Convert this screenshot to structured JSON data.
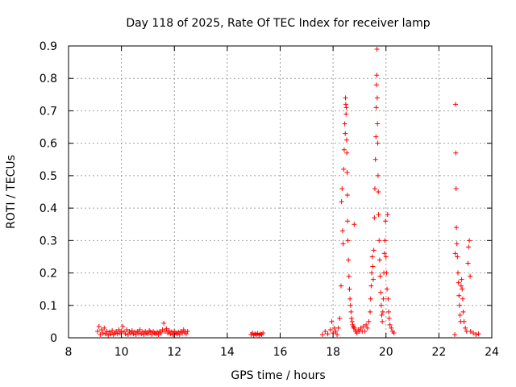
{
  "chart_data": {
    "type": "scatter",
    "title": "Day 118 of 2025, Rate Of TEC Index for receiver lamp",
    "xlabel": "GPS time / hours",
    "ylabel": "ROTI / TECUs",
    "xlim": [
      8,
      24
    ],
    "ylim": [
      0,
      0.9
    ],
    "x_ticks": [
      8,
      10,
      12,
      14,
      16,
      18,
      20,
      22,
      24
    ],
    "y_ticks": [
      0,
      0.1,
      0.2,
      0.3,
      0.4,
      0.5,
      0.6,
      0.7,
      0.8,
      0.9
    ],
    "x_tick_labels": [
      "8",
      "10",
      "12",
      "14",
      "16",
      "18",
      "20",
      "22",
      "24"
    ],
    "y_tick_labels": [
      "0",
      "0.1",
      "0.2",
      "0.3",
      "0.4",
      "0.5",
      "0.6",
      "0.7",
      "0.8",
      "0.9"
    ],
    "grid": true,
    "marker": "+",
    "color": "#ff0000",
    "series": [
      {
        "name": "ROTI",
        "points": [
          [
            9.1,
            0.02
          ],
          [
            9.15,
            0.035
          ],
          [
            9.2,
            0.01
          ],
          [
            9.25,
            0.025
          ],
          [
            9.3,
            0.015
          ],
          [
            9.35,
            0.03
          ],
          [
            9.4,
            0.012
          ],
          [
            9.45,
            0.02
          ],
          [
            9.5,
            0.008
          ],
          [
            9.55,
            0.018
          ],
          [
            9.6,
            0.012
          ],
          [
            9.65,
            0.022
          ],
          [
            9.7,
            0.01
          ],
          [
            9.75,
            0.015
          ],
          [
            9.8,
            0.02
          ],
          [
            9.85,
            0.012
          ],
          [
            9.9,
            0.025
          ],
          [
            9.95,
            0.015
          ],
          [
            10.0,
            0.02
          ],
          [
            10.05,
            0.035
          ],
          [
            10.1,
            0.018
          ],
          [
            10.15,
            0.012
          ],
          [
            10.2,
            0.025
          ],
          [
            10.25,
            0.01
          ],
          [
            10.3,
            0.02
          ],
          [
            10.35,
            0.015
          ],
          [
            10.4,
            0.022
          ],
          [
            10.45,
            0.012
          ],
          [
            10.5,
            0.018
          ],
          [
            10.55,
            0.01
          ],
          [
            10.6,
            0.02
          ],
          [
            10.65,
            0.015
          ],
          [
            10.7,
            0.025
          ],
          [
            10.75,
            0.012
          ],
          [
            10.8,
            0.018
          ],
          [
            10.85,
            0.01
          ],
          [
            10.9,
            0.02
          ],
          [
            10.95,
            0.015
          ],
          [
            11.0,
            0.012
          ],
          [
            11.05,
            0.022
          ],
          [
            11.1,
            0.018
          ],
          [
            11.15,
            0.01
          ],
          [
            11.2,
            0.02
          ],
          [
            11.25,
            0.015
          ],
          [
            11.3,
            0.012
          ],
          [
            11.35,
            0.018
          ],
          [
            11.4,
            0.01
          ],
          [
            11.45,
            0.02
          ],
          [
            11.5,
            0.015
          ],
          [
            11.55,
            0.025
          ],
          [
            11.6,
            0.045
          ],
          [
            11.65,
            0.02
          ],
          [
            11.7,
            0.028
          ],
          [
            11.75,
            0.015
          ],
          [
            11.8,
            0.022
          ],
          [
            11.85,
            0.012
          ],
          [
            11.9,
            0.018
          ],
          [
            11.95,
            0.01
          ],
          [
            12.0,
            0.02
          ],
          [
            12.05,
            0.015
          ],
          [
            12.1,
            0.012
          ],
          [
            12.15,
            0.018
          ],
          [
            12.2,
            0.01
          ],
          [
            12.25,
            0.02
          ],
          [
            12.3,
            0.015
          ],
          [
            12.35,
            0.025
          ],
          [
            12.4,
            0.018
          ],
          [
            12.45,
            0.012
          ],
          [
            12.5,
            0.02
          ],
          [
            14.9,
            0.01
          ],
          [
            14.95,
            0.015
          ],
          [
            15.0,
            0.008
          ],
          [
            15.05,
            0.012
          ],
          [
            15.1,
            0.01
          ],
          [
            15.15,
            0.014
          ],
          [
            15.2,
            0.008
          ],
          [
            15.25,
            0.012
          ],
          [
            15.3,
            0.01
          ],
          [
            15.35,
            0.015
          ],
          [
            17.6,
            0.01
          ],
          [
            17.7,
            0.02
          ],
          [
            17.8,
            0.012
          ],
          [
            17.9,
            0.025
          ],
          [
            17.95,
            0.05
          ],
          [
            18.0,
            0.015
          ],
          [
            18.05,
            0.03
          ],
          [
            18.1,
            0.02
          ],
          [
            18.15,
            0.01
          ],
          [
            18.2,
            0.03
          ],
          [
            18.25,
            0.06
          ],
          [
            18.3,
            0.16
          ],
          [
            18.32,
            0.42
          ],
          [
            18.34,
            0.46
          ],
          [
            18.36,
            0.33
          ],
          [
            18.38,
            0.29
          ],
          [
            18.4,
            0.52
          ],
          [
            18.42,
            0.58
          ],
          [
            18.44,
            0.66
          ],
          [
            18.46,
            0.63
          ],
          [
            18.47,
            0.74
          ],
          [
            18.48,
            0.72
          ],
          [
            18.49,
            0.69
          ],
          [
            18.5,
            0.71
          ],
          [
            18.51,
            0.61
          ],
          [
            18.52,
            0.57
          ],
          [
            18.53,
            0.51
          ],
          [
            18.54,
            0.44
          ],
          [
            18.55,
            0.36
          ],
          [
            18.56,
            0.3
          ],
          [
            18.58,
            0.24
          ],
          [
            18.6,
            0.19
          ],
          [
            18.62,
            0.15
          ],
          [
            18.64,
            0.12
          ],
          [
            18.66,
            0.1
          ],
          [
            18.68,
            0.08
          ],
          [
            18.7,
            0.06
          ],
          [
            18.72,
            0.05
          ],
          [
            18.74,
            0.04
          ],
          [
            18.76,
            0.035
          ],
          [
            18.78,
            0.03
          ],
          [
            18.8,
            0.35
          ],
          [
            18.82,
            0.03
          ],
          [
            18.85,
            0.02
          ],
          [
            18.9,
            0.015
          ],
          [
            18.95,
            0.025
          ],
          [
            19.0,
            0.02
          ],
          [
            19.05,
            0.03
          ],
          [
            19.1,
            0.02
          ],
          [
            19.15,
            0.035
          ],
          [
            19.2,
            0.02
          ],
          [
            19.25,
            0.04
          ],
          [
            19.3,
            0.03
          ],
          [
            19.35,
            0.05
          ],
          [
            19.4,
            0.08
          ],
          [
            19.42,
            0.12
          ],
          [
            19.44,
            0.16
          ],
          [
            19.46,
            0.2
          ],
          [
            19.48,
            0.25
          ],
          [
            19.5,
            0.22
          ],
          [
            19.52,
            0.18
          ],
          [
            19.54,
            0.27
          ],
          [
            19.56,
            0.37
          ],
          [
            19.58,
            0.46
          ],
          [
            19.6,
            0.55
          ],
          [
            19.62,
            0.62
          ],
          [
            19.63,
            0.71
          ],
          [
            19.64,
            0.78
          ],
          [
            19.65,
            0.81
          ],
          [
            19.66,
            0.89
          ],
          [
            19.67,
            0.74
          ],
          [
            19.68,
            0.66
          ],
          [
            19.69,
            0.6
          ],
          [
            19.7,
            0.5
          ],
          [
            19.71,
            0.45
          ],
          [
            19.72,
            0.38
          ],
          [
            19.74,
            0.3
          ],
          [
            19.76,
            0.24
          ],
          [
            19.78,
            0.19
          ],
          [
            19.8,
            0.14
          ],
          [
            19.82,
            0.1
          ],
          [
            19.84,
            0.07
          ],
          [
            19.86,
            0.05
          ],
          [
            19.88,
            0.08
          ],
          [
            19.9,
            0.12
          ],
          [
            19.92,
            0.2
          ],
          [
            19.94,
            0.26
          ],
          [
            19.96,
            0.3
          ],
          [
            19.98,
            0.36
          ],
          [
            20.0,
            0.25
          ],
          [
            20.02,
            0.2
          ],
          [
            20.04,
            0.15
          ],
          [
            20.06,
            0.38
          ],
          [
            20.08,
            0.12
          ],
          [
            20.1,
            0.08
          ],
          [
            20.12,
            0.06
          ],
          [
            20.15,
            0.04
          ],
          [
            20.2,
            0.03
          ],
          [
            20.25,
            0.02
          ],
          [
            20.3,
            0.015
          ],
          [
            22.6,
            0.01
          ],
          [
            22.62,
            0.26
          ],
          [
            22.63,
            0.72
          ],
          [
            22.64,
            0.57
          ],
          [
            22.65,
            0.46
          ],
          [
            22.66,
            0.34
          ],
          [
            22.68,
            0.29
          ],
          [
            22.7,
            0.25
          ],
          [
            22.72,
            0.2
          ],
          [
            22.74,
            0.17
          ],
          [
            22.76,
            0.13
          ],
          [
            22.78,
            0.1
          ],
          [
            22.8,
            0.07
          ],
          [
            22.82,
            0.05
          ],
          [
            22.84,
            0.16
          ],
          [
            22.86,
            0.18
          ],
          [
            22.88,
            0.15
          ],
          [
            22.9,
            0.12
          ],
          [
            22.92,
            0.08
          ],
          [
            22.95,
            0.05
          ],
          [
            23.0,
            0.03
          ],
          [
            23.05,
            0.02
          ],
          [
            23.1,
            0.23
          ],
          [
            23.12,
            0.28
          ],
          [
            23.15,
            0.3
          ],
          [
            23.18,
            0.19
          ],
          [
            23.2,
            0.02
          ],
          [
            23.3,
            0.015
          ],
          [
            23.4,
            0.01
          ],
          [
            23.5,
            0.012
          ]
        ]
      }
    ]
  }
}
